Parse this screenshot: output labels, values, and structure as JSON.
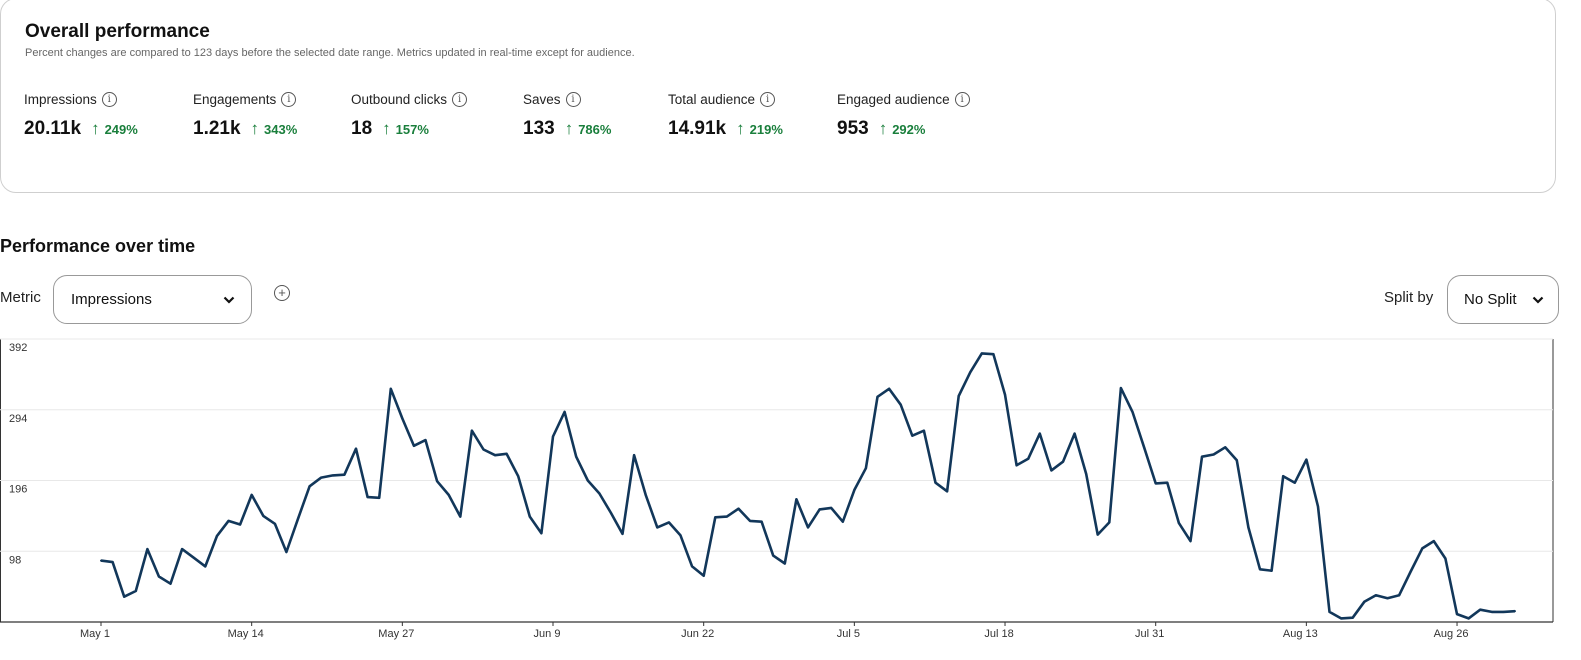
{
  "overall": {
    "title": "Overall performance",
    "subtitle": "Percent changes are compared to 123 days before the selected date range. Metrics updated in real-time except for audience.",
    "metrics": [
      {
        "label": "Impressions",
        "value": "20.11k",
        "change": "249%"
      },
      {
        "label": "Engagements",
        "value": "1.21k",
        "change": "343%"
      },
      {
        "label": "Outbound clicks",
        "value": "18",
        "change": "157%"
      },
      {
        "label": "Saves",
        "value": "133",
        "change": "786%"
      },
      {
        "label": "Total audience",
        "value": "14.91k",
        "change": "219%"
      },
      {
        "label": "Engaged audience",
        "value": "953",
        "change": "292%"
      }
    ],
    "info_icon": "info-icon",
    "up_arrow": "↑",
    "positive_color": "#1a7f3c"
  },
  "performance": {
    "title": "Performance over time",
    "metric_label": "Metric",
    "metric_value": "Impressions",
    "split_label": "Split by",
    "split_value": "No Split",
    "add_icon": "plus-circle-icon"
  },
  "chart_data": {
    "type": "line",
    "title": "",
    "xlabel": "",
    "ylabel": "",
    "series_color": "#12375a",
    "start_date": "May 1",
    "ylim": [
      0,
      392
    ],
    "yticks": [
      "98",
      "196",
      "294",
      "392"
    ],
    "xticks": [
      "May 1",
      "May 14",
      "May 27",
      "Jun 9",
      "Jun 22",
      "Jul 5",
      "Jul 18",
      "Jul 31",
      "Aug 13",
      "Aug 26"
    ],
    "xtick_interval_days": 13,
    "series": [
      {
        "name": "Impressions",
        "values": [
          85,
          83,
          35,
          43,
          101,
          63,
          53,
          101,
          89,
          77,
          119,
          140,
          135,
          176,
          147,
          136,
          97,
          143,
          188,
          200,
          203,
          204,
          240,
          173,
          172,
          323,
          282,
          244,
          252,
          195,
          176,
          146,
          265,
          239,
          231,
          233,
          202,
          146,
          123,
          257,
          291,
          229,
          196,
          178,
          151,
          122,
          231,
          176,
          131,
          138,
          120,
          77,
          64,
          145,
          146,
          157,
          140,
          139,
          92,
          81,
          170,
          131,
          156,
          158,
          139,
          183,
          213,
          312,
          323,
          301,
          258,
          265,
          193,
          181,
          313,
          346,
          372,
          371,
          315,
          217,
          226,
          261,
          210,
          222,
          261,
          205,
          121,
          138,
          324,
          291,
          242,
          192,
          193,
          137,
          112,
          229,
          232,
          242,
          224,
          131,
          73,
          71,
          202,
          193,
          225,
          160,
          14,
          5,
          6,
          28,
          37,
          33,
          37,
          70,
          102,
          112,
          88,
          11,
          5,
          17,
          14,
          14,
          15
        ]
      }
    ]
  }
}
